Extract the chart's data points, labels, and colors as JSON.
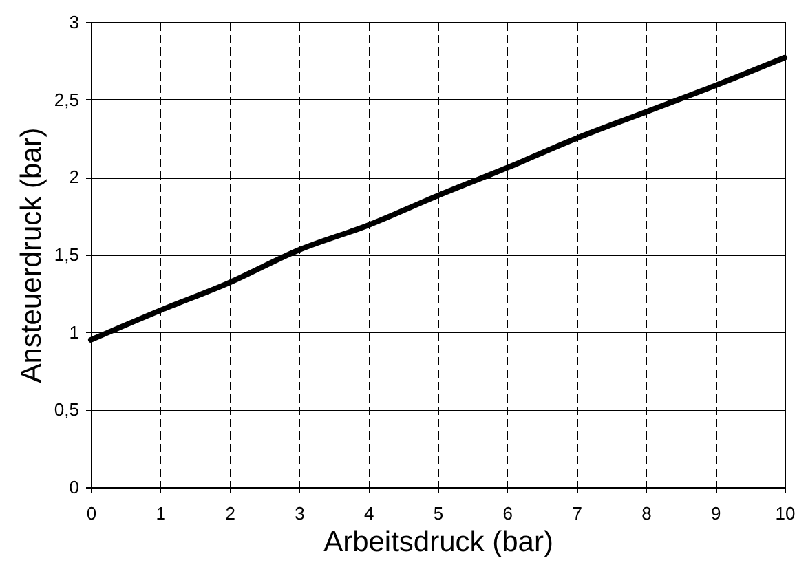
{
  "chart_data": {
    "type": "line",
    "xlabel": "Arbeitsdruck (bar)",
    "ylabel": "Ansteuerdruck (bar)",
    "x": [
      0,
      1,
      2,
      3,
      4,
      5,
      6,
      7,
      8,
      9,
      10
    ],
    "series": [
      {
        "color": "#000000",
        "values": [
          0.95,
          1.14,
          1.32,
          1.53,
          1.69,
          1.88,
          2.06,
          2.25,
          2.42,
          2.59,
          2.77
        ]
      }
    ],
    "xlim": [
      0,
      10
    ],
    "xticks": [
      0,
      1,
      2,
      3,
      4,
      5,
      6,
      7,
      8,
      9,
      10
    ],
    "ylim": [
      0,
      3
    ],
    "yticks": [
      0,
      {
        "value": 0.5,
        "label": "0,5"
      },
      1,
      {
        "value": 1.5,
        "label": "1,5"
      },
      2,
      {
        "value": 2.5,
        "label": "2,5"
      },
      3
    ],
    "grid": true,
    "line_style": "solid",
    "marker": "none"
  }
}
